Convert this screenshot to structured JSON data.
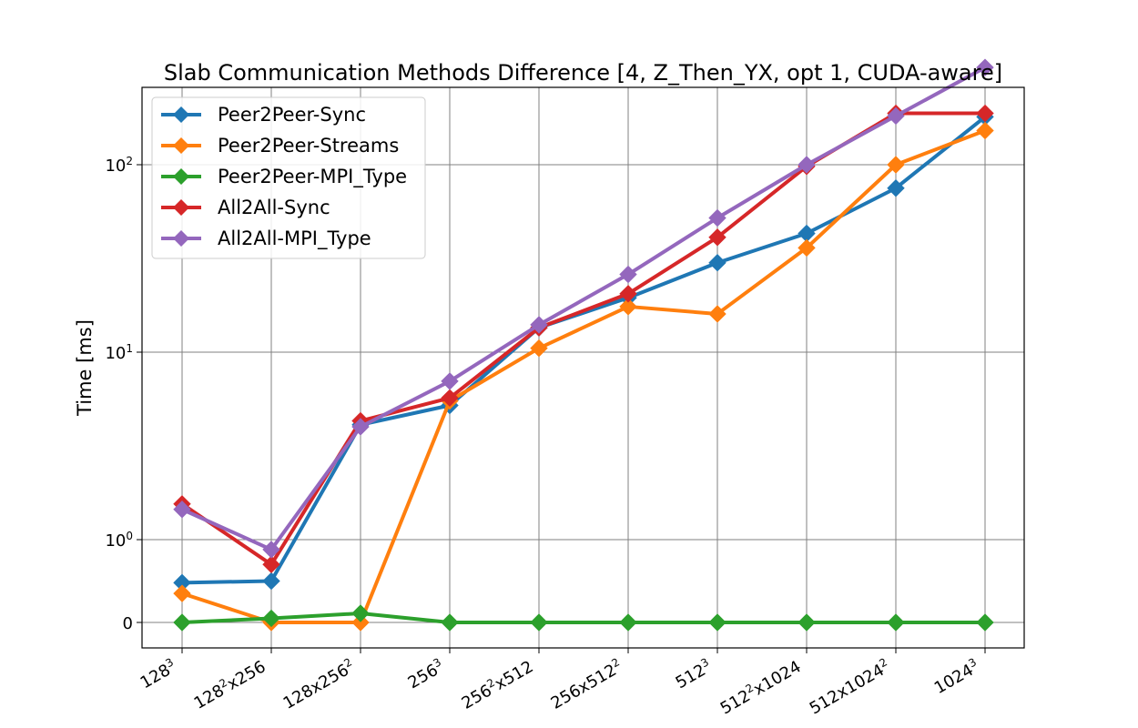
{
  "chart_data": {
    "type": "line",
    "title": "Slab Communication Methods Difference [4, Z_Then_YX, opt 1, CUDA-aware]",
    "xlabel": "",
    "ylabel": "Time [ms]",
    "y_scale": "symlog",
    "yticks": [
      {
        "value": 0,
        "base": "0",
        "exp": ""
      },
      {
        "value": 1,
        "base": "10",
        "exp": "0"
      },
      {
        "value": 10,
        "base": "10",
        "exp": "1"
      },
      {
        "value": 100,
        "base": "10",
        "exp": "2"
      }
    ],
    "categories": [
      {
        "parts": [
          {
            "t": "128"
          },
          {
            "t": "3",
            "sup": true
          }
        ]
      },
      {
        "parts": [
          {
            "t": "128"
          },
          {
            "t": "2",
            "sup": true
          },
          {
            "t": "x256"
          }
        ]
      },
      {
        "parts": [
          {
            "t": "128x256"
          },
          {
            "t": "2",
            "sup": true
          }
        ]
      },
      {
        "parts": [
          {
            "t": "256"
          },
          {
            "t": "3",
            "sup": true
          }
        ]
      },
      {
        "parts": [
          {
            "t": "256"
          },
          {
            "t": "2",
            "sup": true
          },
          {
            "t": "x512"
          }
        ]
      },
      {
        "parts": [
          {
            "t": "256x512"
          },
          {
            "t": "2",
            "sup": true
          }
        ]
      },
      {
        "parts": [
          {
            "t": "512"
          },
          {
            "t": "3",
            "sup": true
          }
        ]
      },
      {
        "parts": [
          {
            "t": "512"
          },
          {
            "t": "2",
            "sup": true
          },
          {
            "t": "x1024"
          }
        ]
      },
      {
        "parts": [
          {
            "t": "512x1024"
          },
          {
            "t": "2",
            "sup": true
          }
        ]
      },
      {
        "parts": [
          {
            "t": "1024"
          },
          {
            "t": "3",
            "sup": true
          }
        ]
      }
    ],
    "series": [
      {
        "name": "Peer2Peer-Sync",
        "color": "#1f77b4",
        "values": [
          0.48,
          0.5,
          4.1,
          5.2,
          13.5,
          19.5,
          30,
          43,
          75,
          180
        ]
      },
      {
        "name": "Peer2Peer-Streams",
        "color": "#ff7f0e",
        "values": [
          0.35,
          0.0,
          0.0,
          5.5,
          10.5,
          17.5,
          16,
          36,
          100,
          152
        ]
      },
      {
        "name": "Peer2Peer-MPI_Type",
        "color": "#2ca02c",
        "values": [
          0.0,
          0.05,
          0.11,
          0.0,
          0.0,
          0.0,
          0.0,
          0.0,
          0.0,
          0.0
        ]
      },
      {
        "name": "All2All-Sync",
        "color": "#d62728",
        "values": [
          1.55,
          0.7,
          4.3,
          5.7,
          13.5,
          20.5,
          41,
          98,
          188,
          188
        ]
      },
      {
        "name": "All2All-MPI_Type",
        "color": "#9467bd",
        "values": [
          1.45,
          0.88,
          4.0,
          7.0,
          14,
          26,
          52,
          100,
          182,
          330
        ]
      }
    ],
    "grid": true,
    "legend": "upper left"
  }
}
